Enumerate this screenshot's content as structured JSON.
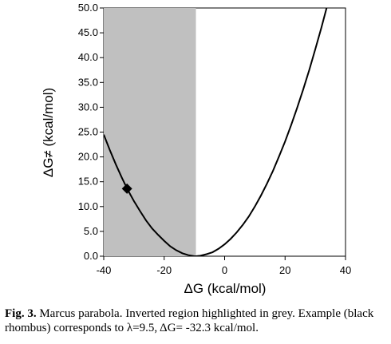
{
  "chart_data": {
    "type": "line",
    "title": "",
    "xlabel": "ΔG (kcal/mol)",
    "ylabel": "ΔG≠ (kcal/mol)",
    "xlim": [
      -40,
      40
    ],
    "ylim": [
      0,
      50
    ],
    "x_ticks": [
      -40,
      -20,
      0,
      20,
      40
    ],
    "x_tick_labels": [
      "-40",
      "-20",
      "0",
      "20",
      "40"
    ],
    "y_ticks": [
      0,
      5,
      10,
      15,
      20,
      25,
      30,
      35,
      40,
      45,
      50
    ],
    "y_tick_labels": [
      "0.0",
      "5.0",
      "10.0",
      "15.0",
      "20.0",
      "25.0",
      "30.0",
      "35.0",
      "40.0",
      "45.0",
      "50.0"
    ],
    "grid": false,
    "legend": "none",
    "shaded_region": {
      "x_from": -40,
      "x_to": -9.5,
      "color": "#c0c0c0",
      "label": "Inverted region"
    },
    "series": [
      {
        "style": "line",
        "color": "#000000",
        "x": [
          -40,
          -38,
          -36,
          -34,
          -32,
          -30,
          -28,
          -26,
          -24,
          -22,
          -20,
          -18,
          -16,
          -14,
          -12,
          -10,
          -9.5,
          -8,
          -6,
          -4,
          -2,
          0,
          2,
          4,
          6,
          8,
          10,
          12,
          14,
          16,
          18,
          20,
          22,
          24,
          26,
          28,
          30,
          32,
          34,
          34.3
        ],
        "y": [
          24.5,
          21.4,
          18.5,
          15.8,
          13.3,
          11.1,
          9.1,
          7.2,
          5.6,
          4.3,
          3.1,
          2.0,
          1.2,
          0.6,
          0.2,
          0.0,
          0.0,
          0.1,
          0.4,
          0.8,
          1.5,
          2.4,
          3.5,
          4.8,
          6.3,
          8.0,
          10.0,
          12.2,
          14.6,
          17.2,
          20.1,
          23.1,
          26.4,
          29.9,
          33.6,
          37.5,
          41.7,
          46.0,
          50.6,
          51.3
        ]
      },
      {
        "style": "marker",
        "marker": "diamond",
        "color": "#000000",
        "x": [
          -32.3
        ],
        "y": [
          13.6
        ]
      }
    ]
  },
  "caption": {
    "label": "Fig. 3.",
    "text": " Marcus parabola. Inverted region highlighted in grey. Example (black rhombus) corresponds to λ=9.5, ΔG= -32.3 kcal/mol."
  }
}
